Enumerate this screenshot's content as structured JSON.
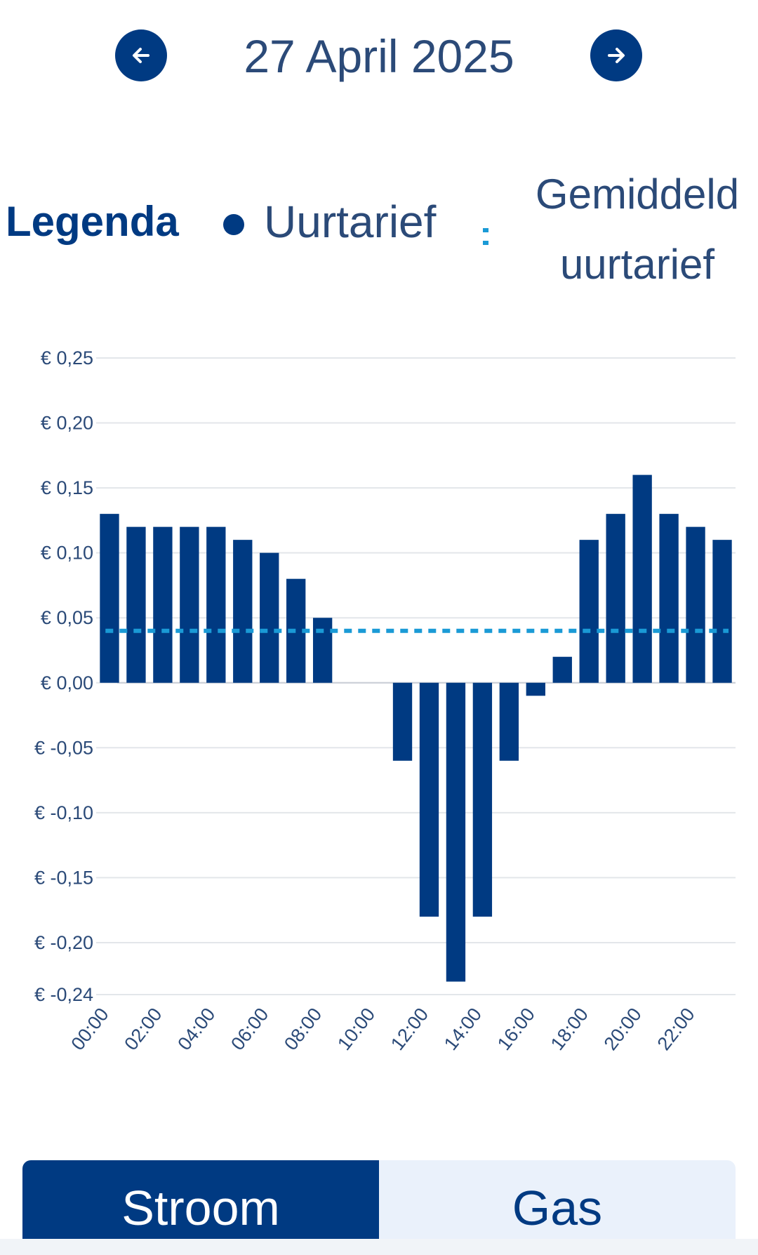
{
  "header": {
    "date": "27 April 2025",
    "prev_icon": "arrow-left-icon",
    "next_icon": "arrow-right-icon"
  },
  "legend": {
    "title": "Legenda",
    "series_label": "Uurtarief",
    "average_label_line1": "Gemiddeld",
    "average_label_line2": "uurtarief"
  },
  "colors": {
    "bar": "#003a82",
    "average": "#1a9ad6",
    "text": "#2b4a78",
    "grid": "#e3e6ea"
  },
  "chart_data": {
    "type": "bar",
    "categories": [
      "00:00",
      "01:00",
      "02:00",
      "03:00",
      "04:00",
      "05:00",
      "06:00",
      "07:00",
      "08:00",
      "09:00",
      "10:00",
      "11:00",
      "12:00",
      "13:00",
      "14:00",
      "15:00",
      "16:00",
      "17:00",
      "18:00",
      "19:00",
      "20:00",
      "21:00",
      "22:00",
      "23:00"
    ],
    "x_tick_labels": [
      "00:00",
      "02:00",
      "04:00",
      "06:00",
      "08:00",
      "10:00",
      "12:00",
      "14:00",
      "16:00",
      "18:00",
      "20:00",
      "22:00"
    ],
    "series": [
      {
        "name": "Uurtarief",
        "values": [
          0.13,
          0.12,
          0.12,
          0.12,
          0.12,
          0.11,
          0.1,
          0.08,
          0.05,
          0,
          0,
          -0.06,
          -0.18,
          -0.23,
          -0.18,
          -0.06,
          -0.01,
          0.02,
          0.11,
          0.13,
          0.16,
          0.13,
          0.12,
          0.11
        ]
      }
    ],
    "average": 0.04,
    "y_ticks": [
      0.25,
      0.2,
      0.15,
      0.1,
      0.05,
      0.0,
      -0.05,
      -0.1,
      -0.15,
      -0.2,
      -0.24
    ],
    "y_tick_labels": [
      "€ 0,25",
      "€ 0,20",
      "€ 0,15",
      "€ 0,10",
      "€ 0,05",
      "€ 0,00",
      "€ -0,05",
      "€ -0,10",
      "€ -0,15",
      "€ -0,20",
      "€ -0,24"
    ],
    "ylim": [
      -0.24,
      0.25
    ],
    "grid": true,
    "legend_position": "top"
  },
  "tabs": {
    "items": [
      {
        "label": "Stroom",
        "active": true
      },
      {
        "label": "Gas",
        "active": false
      }
    ]
  }
}
